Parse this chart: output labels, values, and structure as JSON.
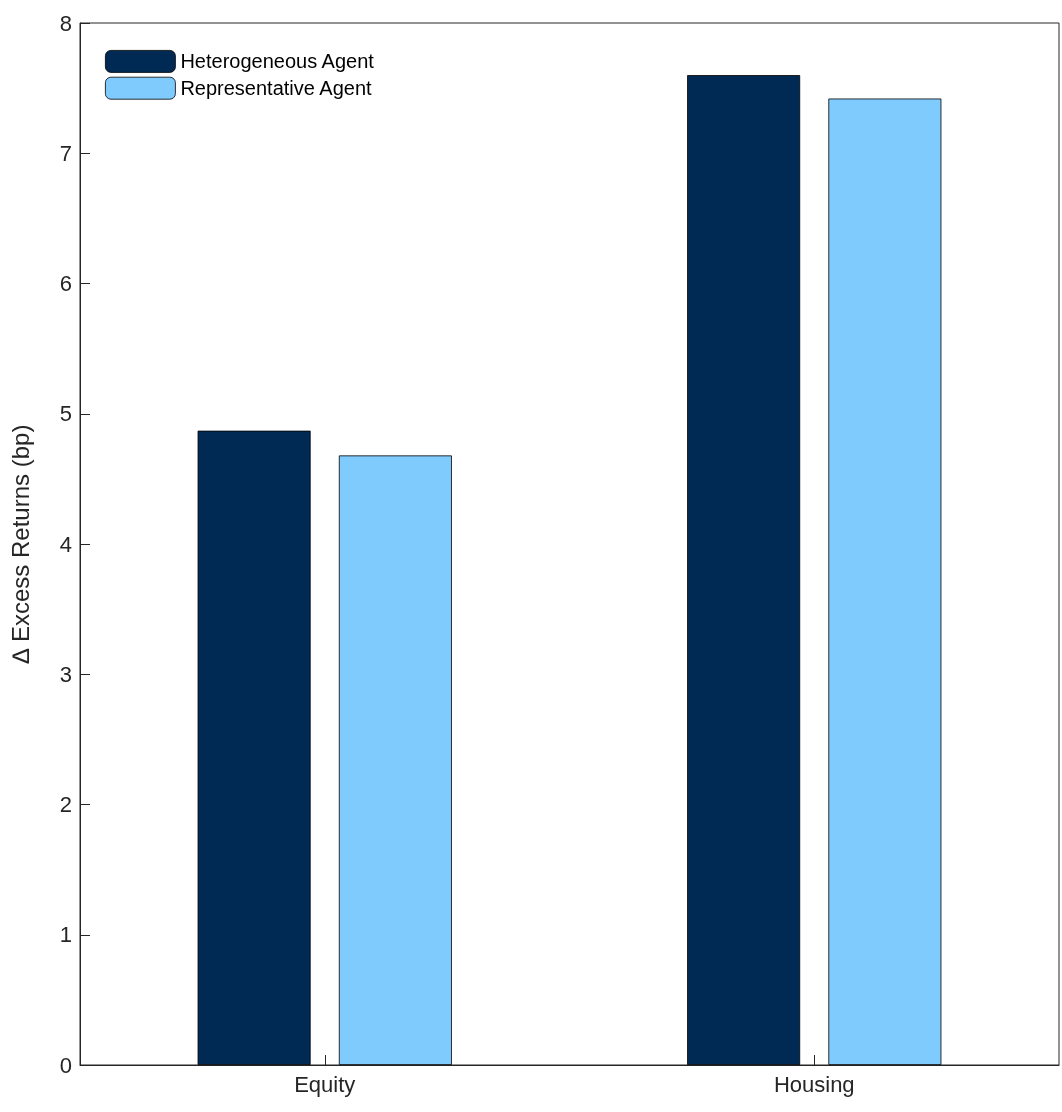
{
  "chart_data": {
    "type": "bar",
    "ylabel": "∆ Excess Returns (bp)",
    "categories": [
      "Equity",
      "Housing"
    ],
    "series": [
      {
        "name": "Heterogeneous Agent",
        "color": "#002a54",
        "values": [
          4.87,
          7.6
        ]
      },
      {
        "name": "Representative Agent",
        "color": "#80cbfd",
        "values": [
          4.68,
          7.42
        ]
      }
    ],
    "ylim": [
      0,
      8
    ],
    "yticks": [
      0,
      1,
      2,
      3,
      4,
      5,
      6,
      7,
      8
    ],
    "grid": false,
    "legend": "top left"
  }
}
